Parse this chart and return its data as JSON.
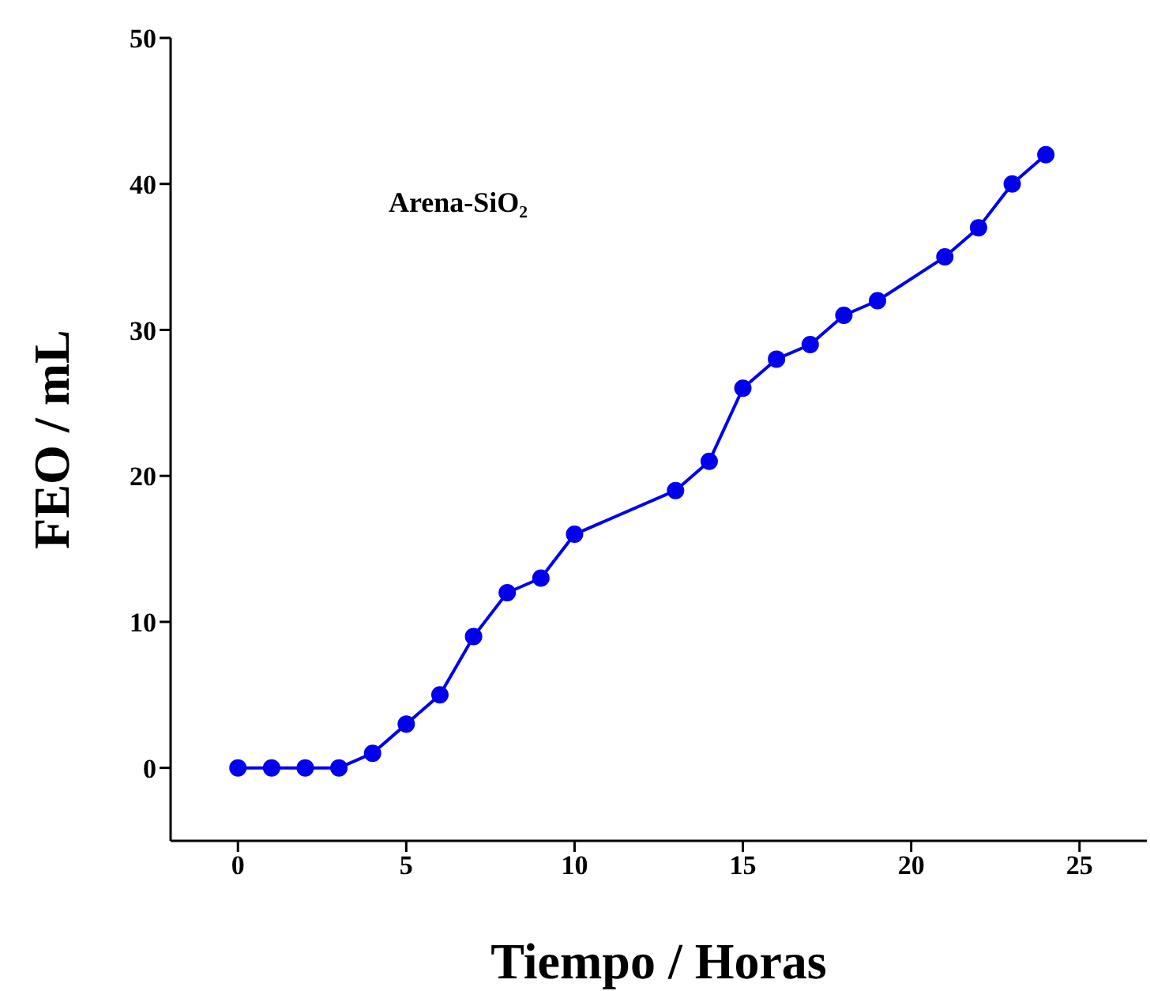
{
  "chart_data": {
    "type": "line",
    "xlabel": "Tiempo / Horas",
    "ylabel": "FEO / mL",
    "annotations": [
      "Arena-SiO₂"
    ],
    "x": [
      0,
      1,
      2,
      3,
      4,
      5,
      6,
      7,
      8,
      9,
      10,
      13,
      14,
      15,
      16,
      17,
      18,
      19,
      21,
      22,
      23,
      24
    ],
    "series": [
      {
        "color": "#0000ee",
        "values": [
          0,
          0,
          0,
          0,
          1,
          3,
          5,
          9,
          12,
          13,
          16,
          19,
          21,
          26,
          28,
          29,
          31,
          32,
          35,
          37,
          40,
          42
        ]
      }
    ],
    "xlim": [
      -2,
      27
    ],
    "xticks": [
      0,
      5,
      10,
      15,
      20,
      25
    ],
    "ylim": [
      -5,
      50
    ],
    "yticks": [
      0,
      10,
      20,
      30,
      40,
      50
    ],
    "grid": false,
    "marker": "circle",
    "line_style": "solid"
  }
}
